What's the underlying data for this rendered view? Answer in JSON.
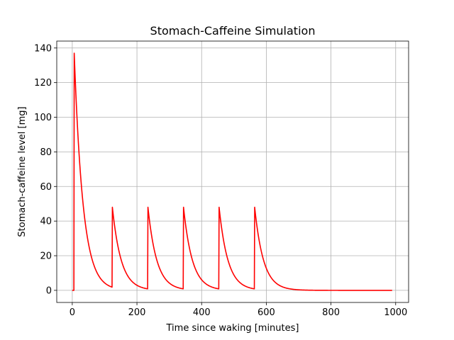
{
  "chart_data": {
    "type": "line",
    "title": "Stomach-Caffeine Simulation",
    "xlabel": "Time since waking [minutes]",
    "ylabel": "Stomach-caffeine level [mg]",
    "xlim": [
      -48,
      1040
    ],
    "ylim": [
      -7,
      144
    ],
    "xticks": [
      0,
      200,
      400,
      600,
      800,
      1000
    ],
    "yticks": [
      0,
      20,
      40,
      60,
      80,
      100,
      120,
      140
    ],
    "grid": true,
    "series": [
      {
        "color": "#ff0000",
        "doses": [
          {
            "t": 5,
            "peak": 137
          },
          {
            "t": 123,
            "peak": 48
          },
          {
            "t": 233,
            "peak": 48
          },
          {
            "t": 343,
            "peak": 48
          },
          {
            "t": 453,
            "peak": 48
          },
          {
            "t": 563,
            "peak": 48
          }
        ],
        "decay_rate_per_min": 0.0368,
        "x_end": 990
      }
    ]
  }
}
